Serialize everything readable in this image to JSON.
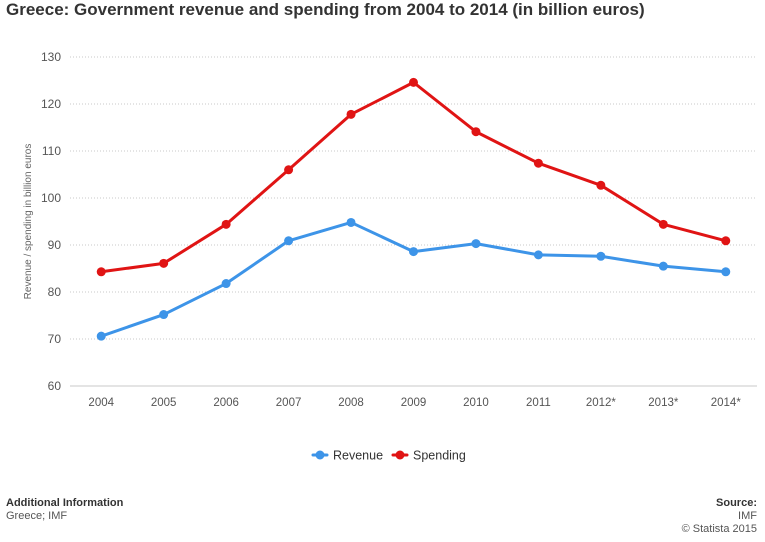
{
  "chart_data": {
    "type": "line",
    "title": "Greece: Government revenue and spending from 2004 to 2014 (in billion euros)",
    "xlabel": "",
    "ylabel": "Revenue / spending in billion euros",
    "ylim": [
      60,
      130
    ],
    "yticks": [
      60,
      70,
      80,
      90,
      100,
      110,
      120,
      130
    ],
    "categories": [
      "2004",
      "2005",
      "2006",
      "2007",
      "2008",
      "2009",
      "2010",
      "2011",
      "2012*",
      "2013*",
      "2014*"
    ],
    "series": [
      {
        "name": "Revenue",
        "color": "#3d94e8",
        "values": [
          70.6,
          75.2,
          81.8,
          90.9,
          94.8,
          88.6,
          90.3,
          87.9,
          87.6,
          85.5,
          84.3
        ]
      },
      {
        "name": "Spending",
        "color": "#e01414",
        "values": [
          84.3,
          86.1,
          94.4,
          106.0,
          117.8,
          124.6,
          114.1,
          107.4,
          102.7,
          94.4,
          90.9
        ]
      }
    ],
    "legend_position": "bottom-center",
    "grid": true
  },
  "footer": {
    "additional_heading": "Additional Information",
    "additional_text": "Greece; IMF",
    "source_heading": "Source:",
    "source_text": "IMF",
    "copyright": "© Statista 2015"
  }
}
